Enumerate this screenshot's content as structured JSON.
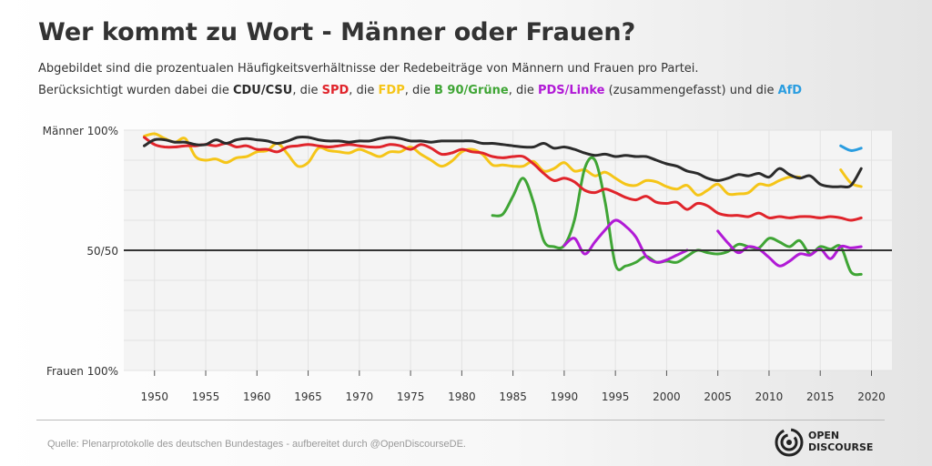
{
  "title": "Wer kommt zu Wort - Männer oder Frauen?",
  "subtitle": {
    "line1": "Abgebildet sind die prozentualen Häufigkeitsverhältnisse der Redebeiträge von Männern und Frauen pro Partei.",
    "line2_prefix": "Berücksichtigt wurden dabei die ",
    "sep": ", die ",
    "sep_last": " und die ",
    "p_cdu": "CDU/CSU",
    "p_spd": "SPD",
    "p_fdp": "FDP",
    "p_gruene": "B 90/Grüne",
    "p_linke": "PDS/Linke",
    "linke_note": " (zusammengefasst)",
    "p_afd": "AfD"
  },
  "source": "Quelle: Plenarprotokolle des deutschen Bundestages - aufbereitet durch @OpenDiscourseDE.",
  "logo": {
    "line1": "OPEN",
    "line2": "DISCOURSE"
  },
  "colors": {
    "CDU/CSU": "#2b2b2b",
    "SPD": "#e0242b",
    "FDP": "#f5c518",
    "B 90/Grüne": "#3fa535",
    "PDS/Linke": "#b11ad6",
    "AfD": "#2a9de0"
  },
  "chart_data": {
    "type": "line",
    "ylim": [
      -100,
      100
    ],
    "y_tick_labels": [
      {
        "value": 100,
        "label": "Männer 100%"
      },
      {
        "value": 0,
        "label": "50/50"
      },
      {
        "value": -100,
        "label": "Frauen 100%"
      }
    ],
    "xlim": [
      1947,
      2022
    ],
    "x_ticks": [
      1950,
      1955,
      1960,
      1965,
      1970,
      1975,
      1980,
      1985,
      1990,
      1995,
      2000,
      2005,
      2010,
      2015,
      2020
    ],
    "grid": true,
    "series": [
      {
        "name": "CDU/CSU",
        "x": [
          1949,
          1950,
          1951,
          1952,
          1953,
          1954,
          1955,
          1956,
          1957,
          1958,
          1959,
          1960,
          1961,
          1962,
          1963,
          1964,
          1965,
          1966,
          1967,
          1968,
          1969,
          1970,
          1971,
          1972,
          1973,
          1974,
          1975,
          1976,
          1977,
          1978,
          1979,
          1980,
          1981,
          1982,
          1983,
          1984,
          1985,
          1986,
          1987,
          1988,
          1989,
          1990,
          1991,
          1992,
          1993,
          1994,
          1995,
          1996,
          1997,
          1998,
          1999,
          2000,
          2001,
          2002,
          2003,
          2004,
          2005,
          2006,
          2007,
          2008,
          2009,
          2010,
          2011,
          2012,
          2013,
          2014,
          2015,
          2016,
          2017,
          2018,
          2019
        ],
        "y": [
          87,
          92,
          92,
          90,
          90,
          88,
          88,
          92,
          89,
          92,
          93,
          92,
          91,
          89,
          91,
          94,
          94,
          92,
          91,
          91,
          90,
          91,
          91,
          93,
          94,
          93,
          91,
          91,
          90,
          91,
          91,
          91,
          91,
          89,
          89,
          88,
          87,
          86,
          86,
          89,
          85,
          86,
          84,
          81,
          79,
          80,
          78,
          79,
          78,
          78,
          75,
          72,
          70,
          66,
          64,
          60,
          58,
          60,
          63,
          62,
          64,
          61,
          68,
          63,
          60,
          62,
          55,
          53,
          53,
          54,
          68
        ]
      },
      {
        "name": "SPD",
        "x": [
          1949,
          1950,
          1951,
          1952,
          1953,
          1954,
          1955,
          1956,
          1957,
          1958,
          1959,
          1960,
          1961,
          1962,
          1963,
          1964,
          1965,
          1966,
          1967,
          1968,
          1969,
          1970,
          1971,
          1972,
          1973,
          1974,
          1975,
          1976,
          1977,
          1978,
          1979,
          1980,
          1981,
          1982,
          1983,
          1984,
          1985,
          1986,
          1987,
          1988,
          1989,
          1990,
          1991,
          1992,
          1993,
          1994,
          1995,
          1996,
          1997,
          1998,
          1999,
          2000,
          2001,
          2002,
          2003,
          2004,
          2005,
          2006,
          2007,
          2008,
          2009,
          2010,
          2011,
          2012,
          2013,
          2014,
          2015,
          2016,
          2017,
          2018,
          2019
        ],
        "y": [
          94,
          88,
          86,
          86,
          87,
          87,
          88,
          87,
          89,
          86,
          87,
          84,
          84,
          82,
          86,
          87,
          88,
          87,
          86,
          87,
          88,
          87,
          86,
          86,
          88,
          87,
          84,
          88,
          85,
          80,
          81,
          84,
          82,
          81,
          78,
          77,
          78,
          78,
          72,
          64,
          58,
          60,
          57,
          50,
          48,
          51,
          48,
          44,
          42,
          45,
          40,
          39,
          40,
          34,
          39,
          37,
          31,
          29,
          29,
          28,
          31,
          27,
          28,
          27,
          28,
          28,
          27,
          28,
          27,
          25,
          27
        ]
      },
      {
        "name": "FDP",
        "x": [
          1949,
          1950,
          1951,
          1952,
          1953,
          1954,
          1955,
          1956,
          1957,
          1958,
          1959,
          1960,
          1961,
          1962,
          1963,
          1964,
          1965,
          1966,
          1967,
          1968,
          1969,
          1970,
          1971,
          1972,
          1973,
          1974,
          1975,
          1976,
          1977,
          1978,
          1979,
          1980,
          1981,
          1982,
          1983,
          1984,
          1985,
          1986,
          1987,
          1988,
          1989,
          1990,
          1991,
          1992,
          1993,
          1994,
          1995,
          1996,
          1997,
          1998,
          1999,
          2000,
          2001,
          2002,
          2003,
          2004,
          2005,
          2006,
          2007,
          2008,
          2009,
          2010,
          2011,
          2012,
          2013
        ],
        "y": [
          95,
          97,
          93,
          90,
          93,
          78,
          75,
          76,
          73,
          77,
          78,
          82,
          83,
          89,
          80,
          70,
          73,
          85,
          83,
          82,
          81,
          84,
          81,
          78,
          82,
          82,
          86,
          80,
          75,
          70,
          74,
          82,
          84,
          80,
          71,
          71,
          70,
          70,
          74,
          66,
          68,
          73,
          66,
          67,
          62,
          65,
          60,
          55,
          54,
          58,
          57,
          53,
          51,
          54,
          46,
          50,
          55,
          47,
          47,
          48,
          55,
          54,
          58,
          61,
          61
        ]
      },
      {
        "name": "FDP",
        "x": [
          2017,
          2018,
          2019
        ],
        "y": [
          67,
          56,
          53
        ]
      },
      {
        "name": "B 90/Grüne",
        "x": [
          1983,
          1984,
          1985,
          1986,
          1987,
          1988,
          1989,
          1990,
          1991,
          1992,
          1993,
          1994,
          1995,
          1996,
          1997,
          1998,
          1999,
          2000,
          2001,
          2002,
          2003,
          2004,
          2005,
          2006,
          2007,
          2008,
          2009,
          2010,
          2011,
          2012,
          2013,
          2014,
          2015,
          2016,
          2017,
          2018,
          2019
        ],
        "y": [
          29,
          30,
          45,
          60,
          40,
          8,
          3,
          4,
          25,
          68,
          75,
          40,
          -12,
          -13,
          -10,
          -5,
          -10,
          -9,
          -10,
          -5,
          0,
          -2,
          -3,
          -1,
          5,
          3,
          2,
          10,
          7,
          3,
          8,
          -3,
          3,
          1,
          3,
          -18,
          -20
        ]
      },
      {
        "name": "PDS/Linke",
        "x": [
          1990,
          1991,
          1992,
          1993,
          1994,
          1995,
          1996,
          1997,
          1998,
          1999,
          2000,
          2001,
          2002
        ],
        "y": [
          4,
          10,
          -3,
          7,
          17,
          25,
          20,
          11,
          -5,
          -10,
          -8,
          -4,
          0
        ]
      },
      {
        "name": "PDS/Linke",
        "x": [
          2005,
          2006,
          2007,
          2008,
          2009,
          2010,
          2011,
          2012,
          2013,
          2014,
          2015,
          2016,
          2017,
          2018,
          2019
        ],
        "y": [
          16,
          6,
          -2,
          3,
          1,
          -6,
          -13,
          -9,
          -3,
          -4,
          1,
          -7,
          3,
          2,
          3
        ]
      },
      {
        "name": "AfD",
        "x": [
          2017,
          2018,
          2019
        ],
        "y": [
          87,
          83,
          85
        ]
      }
    ]
  }
}
